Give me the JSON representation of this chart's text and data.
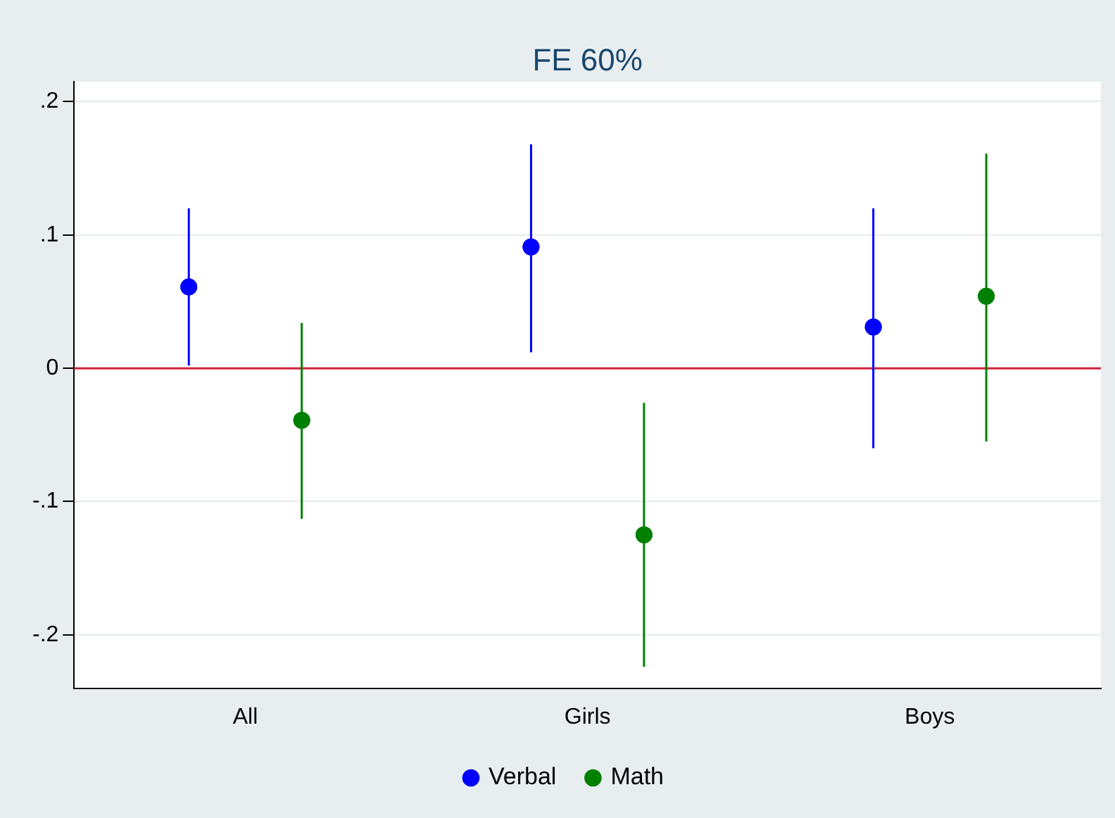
{
  "chart_data": {
    "type": "scatter",
    "title": "FE 60%",
    "categories": [
      "All",
      "Girls",
      "Boys"
    ],
    "ylim": [
      -0.24,
      0.215
    ],
    "yticks": [
      {
        "value": -0.2,
        "label": "-.2"
      },
      {
        "value": -0.1,
        "label": "-.1"
      },
      0,
      {
        "value": 0.1,
        "label": ".1"
      },
      {
        "value": 0.2,
        "label": ".2"
      }
    ],
    "grid": "y",
    "legend": "bottom",
    "marker": "circle",
    "series": [
      {
        "name": "Verbal",
        "color": "#0000ff",
        "values": [
          0.061,
          0.091,
          0.031
        ],
        "errors": [
          [
            0.002,
            0.12
          ],
          [
            0.012,
            0.168
          ],
          [
            -0.06,
            0.12
          ]
        ]
      },
      {
        "name": "Math",
        "color": "#008000",
        "values": [
          -0.039,
          -0.125,
          0.054
        ],
        "errors": [
          [
            -0.113,
            0.034
          ],
          [
            -0.224,
            -0.026
          ],
          [
            -0.055,
            0.161
          ]
        ]
      }
    ],
    "ref_lines": [
      {
        "axis": "y",
        "value": 0,
        "color": "#d0223c"
      }
    ]
  }
}
